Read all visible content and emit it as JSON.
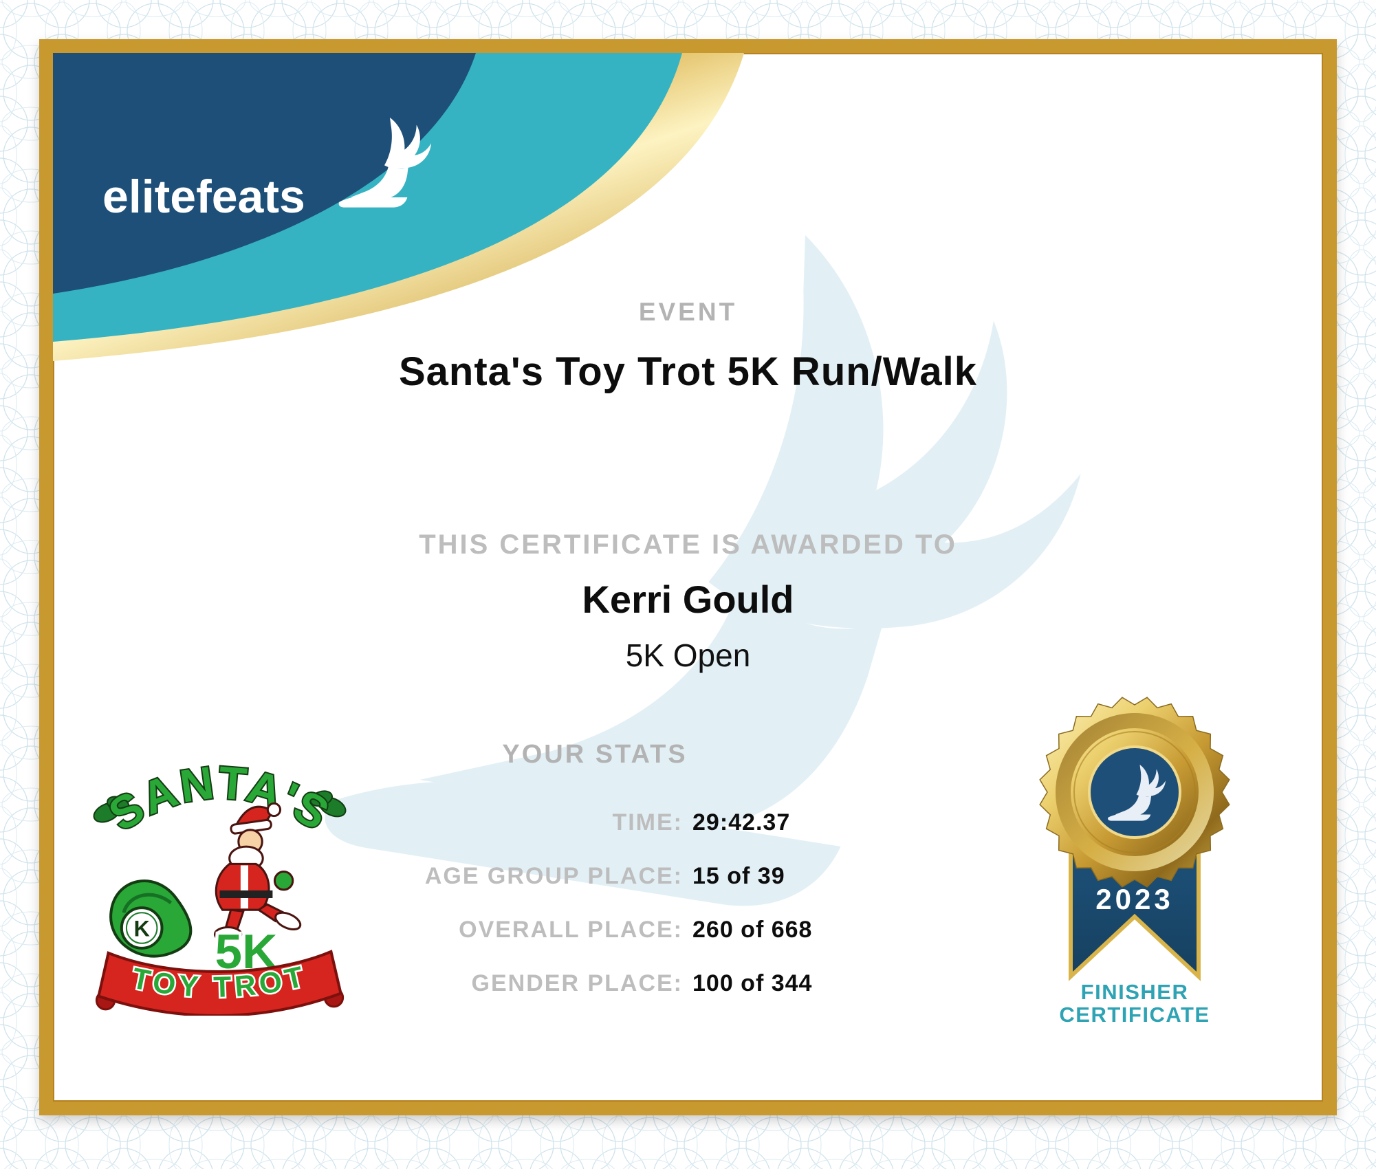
{
  "brand": {
    "name": "elitefeats",
    "icon": "winged-foot-icon"
  },
  "event": {
    "label": "EVENT",
    "name": "Santa's Toy Trot 5K Run/Walk"
  },
  "award": {
    "intro": "THIS CERTIFICATE IS AWARDED TO",
    "recipient": "Kerri Gould",
    "division": "5K Open"
  },
  "stats": {
    "heading": "YOUR STATS",
    "rows": [
      {
        "label": "TIME:",
        "value": "29:42.37"
      },
      {
        "label": "AGE GROUP PLACE:",
        "value": "15 of 39"
      },
      {
        "label": "OVERALL PLACE:",
        "value": "260 of 668"
      },
      {
        "label": "GENDER PLACE:",
        "value": "100 of 344"
      }
    ]
  },
  "event_logo": {
    "title": "SANTA'S",
    "distance": "5K",
    "banner": "TOY TROT",
    "badge_letter": "K"
  },
  "medal": {
    "year": "2023",
    "caption_line1": "FINISHER",
    "caption_line2": "CERTIFICATE"
  },
  "colors": {
    "navy": "#1d4f78",
    "teal": "#35b3c2",
    "frame_gold": "#c8992f",
    "label_gray": "#b3b3b3",
    "finisher_teal": "#2ea3b4",
    "logo_green": "#29a838",
    "logo_red": "#d6241f",
    "watermark_blue": "#e2f0f6"
  }
}
